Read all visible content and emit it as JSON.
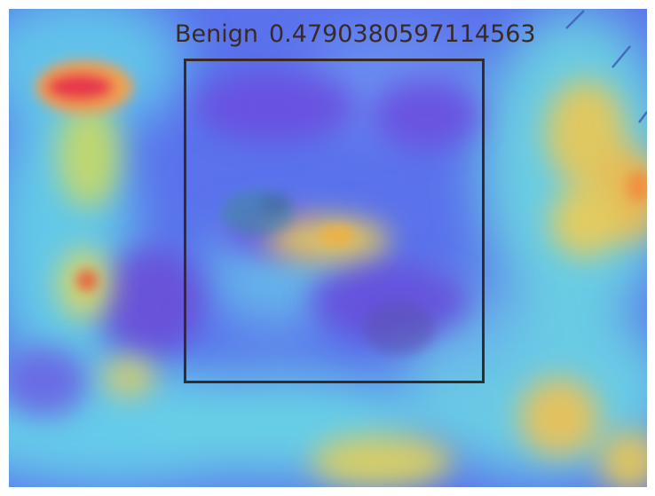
{
  "detection": {
    "class_label": "Benign",
    "score": "0.4790380597114563",
    "box_color": "#3a2a24"
  },
  "colors": {
    "heat_low": "#5a66e8",
    "heat_mid": "#5fd6e8",
    "heat_high": "#f0c24a",
    "heat_peak": "#e8304a"
  }
}
